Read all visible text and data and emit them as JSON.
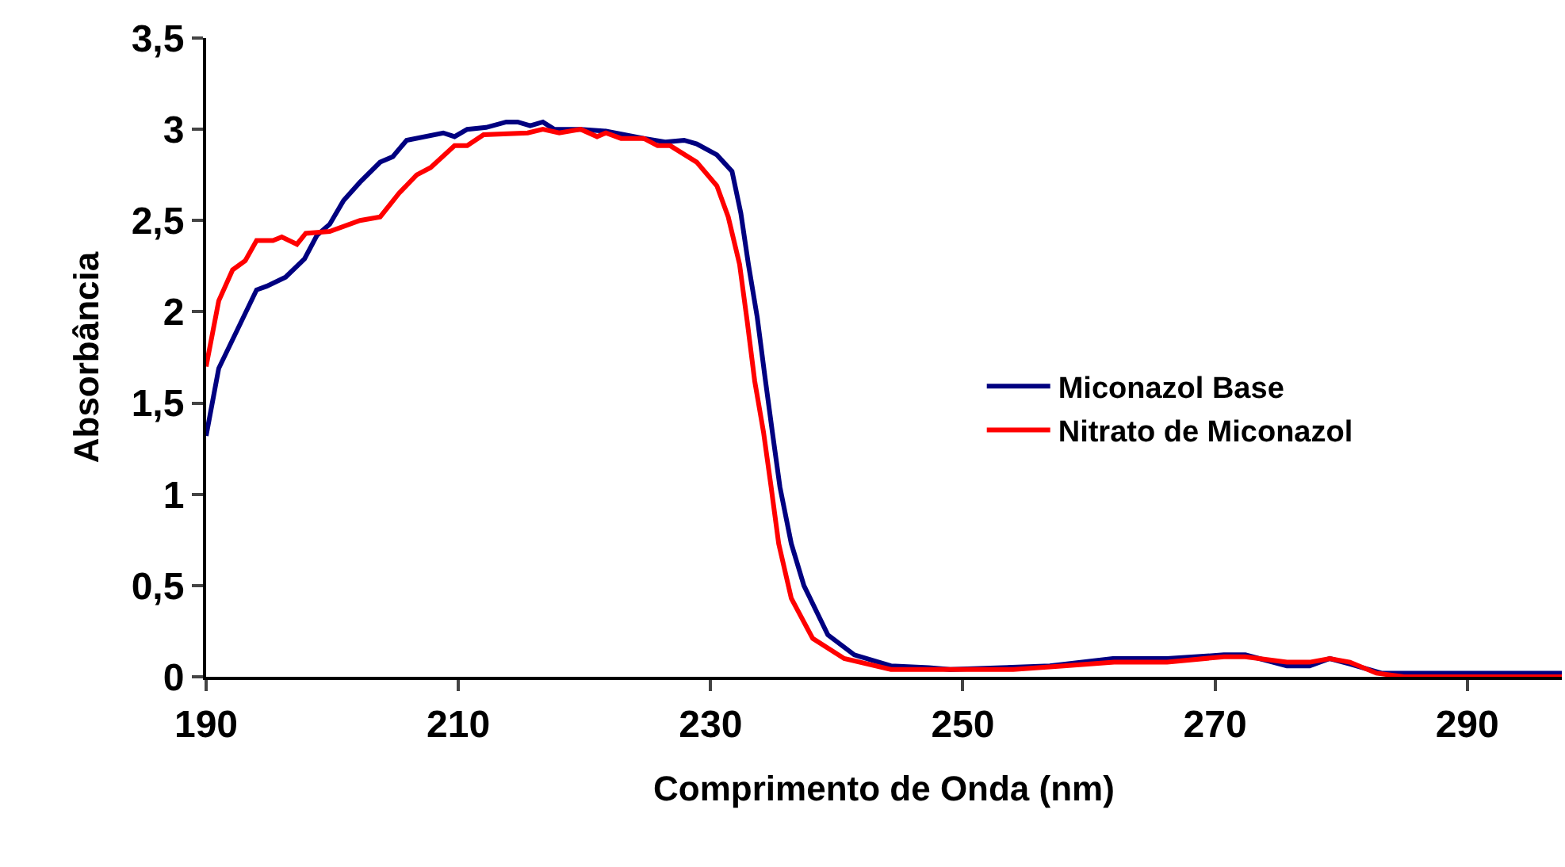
{
  "chart_data": {
    "type": "line",
    "xlabel": "Comprimento de Onda (nm)",
    "ylabel": "Absorbância",
    "xlim": [
      190,
      297.5
    ],
    "xticks": [
      190,
      210,
      230,
      250,
      270,
      290
    ],
    "ylim": [
      0,
      3.5
    ],
    "yticks": [
      {
        "value": 0,
        "label": "0"
      },
      {
        "value": 0.5,
        "label": "0,5"
      },
      {
        "value": 1,
        "label": "1"
      },
      {
        "value": 1.5,
        "label": "1,5"
      },
      {
        "value": 2,
        "label": "2"
      },
      {
        "value": 2.5,
        "label": "2,5"
      },
      {
        "value": 3,
        "label": "3"
      },
      {
        "value": 3.5,
        "label": "3,5"
      }
    ],
    "legend": "right",
    "marker": "none",
    "line_style": "solid",
    "series": [
      {
        "name": "Miconazol Base",
        "color": "#000080",
        "x": [
          190,
          191,
          194,
          194.8,
          196.3,
          197.8,
          198.8,
          199.8,
          200.9,
          202.2,
          203.8,
          204.8,
          205.9,
          208.8,
          209.7,
          210.7,
          212.2,
          213.8,
          214.7,
          215.7,
          216.7,
          217.6,
          219.7,
          221.7,
          224.7,
          226.4,
          227.9,
          228.9,
          230.5,
          231.7,
          232.4,
          233.0,
          233.7,
          234.3,
          234.9,
          235.5,
          236.4,
          237.4,
          239.3,
          241.4,
          244.3,
          247.3,
          249,
          253.1,
          256.9,
          261.9,
          266.2,
          270.7,
          272.4,
          275.7,
          277.5,
          279.1,
          280.7,
          283.2,
          286,
          297.5
        ],
        "values": [
          1.32,
          1.69,
          2.12,
          2.14,
          2.19,
          2.29,
          2.42,
          2.48,
          2.61,
          2.71,
          2.82,
          2.85,
          2.94,
          2.98,
          2.96,
          3.0,
          3.01,
          3.04,
          3.04,
          3.02,
          3.04,
          3.0,
          3.0,
          2.99,
          2.95,
          2.93,
          2.94,
          2.92,
          2.86,
          2.77,
          2.54,
          2.26,
          1.97,
          1.65,
          1.34,
          1.04,
          0.73,
          0.5,
          0.23,
          0.12,
          0.06,
          0.05,
          0.04,
          0.05,
          0.06,
          0.1,
          0.1,
          0.12,
          0.12,
          0.06,
          0.06,
          0.1,
          0.07,
          0.02,
          0.02,
          0.02
        ]
      },
      {
        "name": "Nitrato de Miconazol",
        "color": "#ff0000",
        "x": [
          190,
          191,
          192.1,
          193.1,
          194,
          195.3,
          196,
          197.2,
          197.9,
          199.8,
          202.2,
          203.8,
          205.3,
          206.7,
          207.8,
          209.7,
          210.7,
          212,
          215.5,
          216.7,
          218,
          219.7,
          221,
          221.7,
          222.9,
          224.7,
          225.8,
          226.8,
          228.9,
          230.5,
          231.4,
          232.3,
          232.9,
          233.5,
          234.2,
          234.8,
          235.4,
          236.4,
          238.1,
          240.6,
          244.3,
          249,
          254,
          258,
          262,
          266.2,
          270.7,
          272.4,
          275.7,
          277.5,
          279.1,
          280.7,
          282.8,
          285,
          297.5
        ],
        "values": [
          1.7,
          2.06,
          2.23,
          2.28,
          2.39,
          2.39,
          2.41,
          2.37,
          2.43,
          2.44,
          2.5,
          2.52,
          2.65,
          2.75,
          2.79,
          2.91,
          2.91,
          2.97,
          2.98,
          3.0,
          2.98,
          3.0,
          2.96,
          2.98,
          2.95,
          2.95,
          2.91,
          2.91,
          2.82,
          2.69,
          2.52,
          2.26,
          1.95,
          1.62,
          1.34,
          1.04,
          0.73,
          0.43,
          0.21,
          0.1,
          0.04,
          0.04,
          0.04,
          0.06,
          0.08,
          0.08,
          0.11,
          0.11,
          0.08,
          0.08,
          0.1,
          0.08,
          0.02,
          0,
          0
        ]
      }
    ]
  }
}
